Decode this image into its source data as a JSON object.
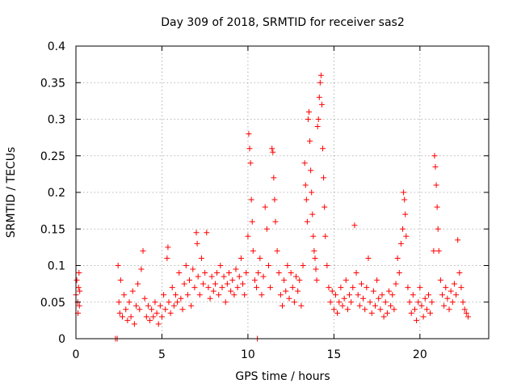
{
  "chart_data": {
    "type": "scatter",
    "title": "Day 309 of 2018, SRMTID for receiver sas2",
    "xlabel": "GPS time / hours",
    "ylabel": "SRMTID / TECUs",
    "xlim": [
      0,
      24
    ],
    "ylim": [
      0,
      0.4
    ],
    "xticks": [
      0,
      5,
      10,
      15,
      20
    ],
    "xtick_labels": [
      "0",
      "5",
      "10",
      "15",
      "20"
    ],
    "yticks": [
      0,
      0.05,
      0.1,
      0.15,
      0.2,
      0.25,
      0.3,
      0.35,
      0.4
    ],
    "ytick_labels": [
      "0",
      "0.05",
      "0.1",
      "0.15",
      "0.2",
      "0.25",
      "0.3",
      "0.35",
      "0.4"
    ],
    "grid": true,
    "marker": "plus",
    "marker_color": "#ff0000",
    "series": [
      {
        "name": "SRMTID",
        "points": [
          [
            0.0,
            0.06
          ],
          [
            0.05,
            0.08
          ],
          [
            0.1,
            0.05
          ],
          [
            0.12,
            0.035
          ],
          [
            0.15,
            0.07
          ],
          [
            0.18,
            0.09
          ],
          [
            0.2,
            0.045
          ],
          [
            0.22,
            0.065
          ],
          [
            2.3,
            0.0
          ],
          [
            2.4,
            0.0
          ],
          [
            2.45,
            0.1
          ],
          [
            2.5,
            0.05
          ],
          [
            2.55,
            0.035
          ],
          [
            2.6,
            0.08
          ],
          [
            2.7,
            0.03
          ],
          [
            2.8,
            0.06
          ],
          [
            2.9,
            0.04
          ],
          [
            3.0,
            0.025
          ],
          [
            3.1,
            0.05
          ],
          [
            3.2,
            0.03
          ],
          [
            3.3,
            0.065
          ],
          [
            3.4,
            0.02
          ],
          [
            3.5,
            0.045
          ],
          [
            3.6,
            0.075
          ],
          [
            3.7,
            0.04
          ],
          [
            3.8,
            0.095
          ],
          [
            3.9,
            0.12
          ],
          [
            4.0,
            0.055
          ],
          [
            4.1,
            0.03
          ],
          [
            4.2,
            0.045
          ],
          [
            4.3,
            0.025
          ],
          [
            4.4,
            0.04
          ],
          [
            4.5,
            0.03
          ],
          [
            4.6,
            0.05
          ],
          [
            4.7,
            0.035
          ],
          [
            4.8,
            0.02
          ],
          [
            4.9,
            0.045
          ],
          [
            5.0,
            0.03
          ],
          [
            5.1,
            0.06
          ],
          [
            5.2,
            0.04
          ],
          [
            5.3,
            0.11
          ],
          [
            5.35,
            0.125
          ],
          [
            5.4,
            0.05
          ],
          [
            5.5,
            0.035
          ],
          [
            5.6,
            0.07
          ],
          [
            5.7,
            0.045
          ],
          [
            5.8,
            0.06
          ],
          [
            5.9,
            0.05
          ],
          [
            6.0,
            0.09
          ],
          [
            6.1,
            0.055
          ],
          [
            6.2,
            0.04
          ],
          [
            6.3,
            0.075
          ],
          [
            6.4,
            0.1
          ],
          [
            6.5,
            0.06
          ],
          [
            6.6,
            0.08
          ],
          [
            6.7,
            0.045
          ],
          [
            6.8,
            0.095
          ],
          [
            6.9,
            0.07
          ],
          [
            7.0,
            0.145
          ],
          [
            7.05,
            0.13
          ],
          [
            7.1,
            0.085
          ],
          [
            7.2,
            0.06
          ],
          [
            7.3,
            0.11
          ],
          [
            7.4,
            0.075
          ],
          [
            7.5,
            0.09
          ],
          [
            7.6,
            0.145
          ],
          [
            7.7,
            0.07
          ],
          [
            7.8,
            0.055
          ],
          [
            7.9,
            0.085
          ],
          [
            8.0,
            0.065
          ],
          [
            8.1,
            0.075
          ],
          [
            8.2,
            0.09
          ],
          [
            8.3,
            0.06
          ],
          [
            8.4,
            0.1
          ],
          [
            8.5,
            0.07
          ],
          [
            8.6,
            0.085
          ],
          [
            8.7,
            0.05
          ],
          [
            8.8,
            0.075
          ],
          [
            8.9,
            0.09
          ],
          [
            9.0,
            0.065
          ],
          [
            9.1,
            0.08
          ],
          [
            9.2,
            0.06
          ],
          [
            9.3,
            0.095
          ],
          [
            9.4,
            0.07
          ],
          [
            9.5,
            0.085
          ],
          [
            9.6,
            0.11
          ],
          [
            9.7,
            0.075
          ],
          [
            9.8,
            0.06
          ],
          [
            9.9,
            0.09
          ],
          [
            10.0,
            0.14
          ],
          [
            10.05,
            0.28
          ],
          [
            10.1,
            0.26
          ],
          [
            10.15,
            0.24
          ],
          [
            10.2,
            0.19
          ],
          [
            10.25,
            0.16
          ],
          [
            10.3,
            0.12
          ],
          [
            10.4,
            0.08
          ],
          [
            10.5,
            0.07
          ],
          [
            10.55,
            0.0
          ],
          [
            10.6,
            0.09
          ],
          [
            10.7,
            0.11
          ],
          [
            10.8,
            0.06
          ],
          [
            10.9,
            0.085
          ],
          [
            11.0,
            0.18
          ],
          [
            11.1,
            0.15
          ],
          [
            11.2,
            0.1
          ],
          [
            11.3,
            0.07
          ],
          [
            11.4,
            0.26
          ],
          [
            11.45,
            0.255
          ],
          [
            11.5,
            0.22
          ],
          [
            11.55,
            0.19
          ],
          [
            11.6,
            0.16
          ],
          [
            11.7,
            0.12
          ],
          [
            11.8,
            0.09
          ],
          [
            11.9,
            0.06
          ],
          [
            12.0,
            0.045
          ],
          [
            12.1,
            0.08
          ],
          [
            12.2,
            0.065
          ],
          [
            12.3,
            0.1
          ],
          [
            12.4,
            0.055
          ],
          [
            12.5,
            0.09
          ],
          [
            12.6,
            0.07
          ],
          [
            12.7,
            0.05
          ],
          [
            12.8,
            0.085
          ],
          [
            12.9,
            0.065
          ],
          [
            13.0,
            0.08
          ],
          [
            13.1,
            0.045
          ],
          [
            13.2,
            0.1
          ],
          [
            13.3,
            0.24
          ],
          [
            13.35,
            0.21
          ],
          [
            13.4,
            0.19
          ],
          [
            13.45,
            0.16
          ],
          [
            13.5,
            0.3
          ],
          [
            13.55,
            0.31
          ],
          [
            13.6,
            0.27
          ],
          [
            13.65,
            0.23
          ],
          [
            13.7,
            0.2
          ],
          [
            13.75,
            0.17
          ],
          [
            13.8,
            0.14
          ],
          [
            13.85,
            0.12
          ],
          [
            13.9,
            0.11
          ],
          [
            13.95,
            0.095
          ],
          [
            14.0,
            0.08
          ],
          [
            14.05,
            0.29
          ],
          [
            14.1,
            0.3
          ],
          [
            14.15,
            0.33
          ],
          [
            14.2,
            0.35
          ],
          [
            14.25,
            0.36
          ],
          [
            14.3,
            0.32
          ],
          [
            14.35,
            0.26
          ],
          [
            14.4,
            0.22
          ],
          [
            14.45,
            0.18
          ],
          [
            14.5,
            0.14
          ],
          [
            14.6,
            0.1
          ],
          [
            14.7,
            0.07
          ],
          [
            14.8,
            0.05
          ],
          [
            14.9,
            0.065
          ],
          [
            15.0,
            0.04
          ],
          [
            15.1,
            0.06
          ],
          [
            15.2,
            0.035
          ],
          [
            15.3,
            0.05
          ],
          [
            15.4,
            0.07
          ],
          [
            15.5,
            0.045
          ],
          [
            15.6,
            0.055
          ],
          [
            15.7,
            0.08
          ],
          [
            15.8,
            0.04
          ],
          [
            15.9,
            0.06
          ],
          [
            16.0,
            0.05
          ],
          [
            16.1,
            0.07
          ],
          [
            16.2,
            0.155
          ],
          [
            16.3,
            0.09
          ],
          [
            16.4,
            0.06
          ],
          [
            16.5,
            0.045
          ],
          [
            16.6,
            0.075
          ],
          [
            16.7,
            0.055
          ],
          [
            16.8,
            0.04
          ],
          [
            16.9,
            0.07
          ],
          [
            17.0,
            0.11
          ],
          [
            17.1,
            0.05
          ],
          [
            17.2,
            0.035
          ],
          [
            17.3,
            0.065
          ],
          [
            17.4,
            0.045
          ],
          [
            17.5,
            0.08
          ],
          [
            17.6,
            0.055
          ],
          [
            17.7,
            0.04
          ],
          [
            17.8,
            0.06
          ],
          [
            17.9,
            0.03
          ],
          [
            18.0,
            0.05
          ],
          [
            18.1,
            0.035
          ],
          [
            18.2,
            0.065
          ],
          [
            18.3,
            0.045
          ],
          [
            18.4,
            0.06
          ],
          [
            18.5,
            0.04
          ],
          [
            18.6,
            0.075
          ],
          [
            18.7,
            0.11
          ],
          [
            18.8,
            0.09
          ],
          [
            18.9,
            0.13
          ],
          [
            19.0,
            0.15
          ],
          [
            19.05,
            0.2
          ],
          [
            19.1,
            0.19
          ],
          [
            19.15,
            0.17
          ],
          [
            19.2,
            0.14
          ],
          [
            19.3,
            0.07
          ],
          [
            19.4,
            0.05
          ],
          [
            19.5,
            0.035
          ],
          [
            19.6,
            0.06
          ],
          [
            19.7,
            0.04
          ],
          [
            19.8,
            0.025
          ],
          [
            19.9,
            0.05
          ],
          [
            20.0,
            0.07
          ],
          [
            20.1,
            0.045
          ],
          [
            20.2,
            0.03
          ],
          [
            20.3,
            0.055
          ],
          [
            20.4,
            0.04
          ],
          [
            20.5,
            0.06
          ],
          [
            20.6,
            0.035
          ],
          [
            20.7,
            0.05
          ],
          [
            20.8,
            0.12
          ],
          [
            20.85,
            0.25
          ],
          [
            20.9,
            0.235
          ],
          [
            20.95,
            0.21
          ],
          [
            21.0,
            0.18
          ],
          [
            21.05,
            0.15
          ],
          [
            21.1,
            0.12
          ],
          [
            21.2,
            0.08
          ],
          [
            21.3,
            0.06
          ],
          [
            21.4,
            0.045
          ],
          [
            21.5,
            0.07
          ],
          [
            21.6,
            0.055
          ],
          [
            21.7,
            0.04
          ],
          [
            21.8,
            0.065
          ],
          [
            21.9,
            0.05
          ],
          [
            22.0,
            0.075
          ],
          [
            22.1,
            0.06
          ],
          [
            22.2,
            0.135
          ],
          [
            22.3,
            0.09
          ],
          [
            22.4,
            0.07
          ],
          [
            22.5,
            0.05
          ],
          [
            22.6,
            0.04
          ],
          [
            22.7,
            0.035
          ],
          [
            22.8,
            0.03
          ]
        ]
      }
    ]
  }
}
